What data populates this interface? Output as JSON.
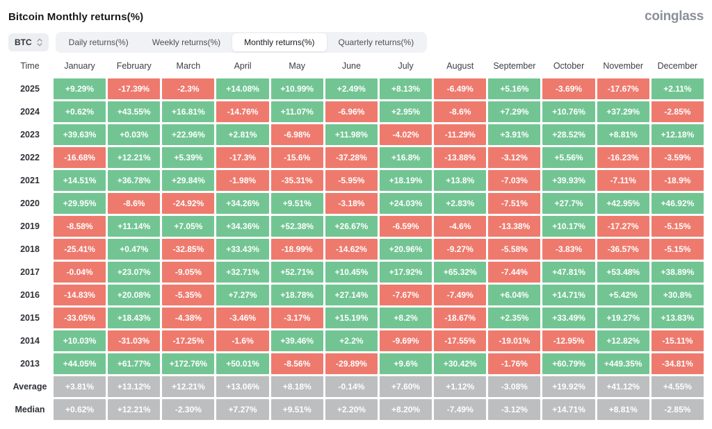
{
  "header": {
    "title": "Bitcoin Monthly returns(%)",
    "logo": "coinglass"
  },
  "toolbar": {
    "symbol_selector": {
      "value": "BTC",
      "icon": "updown-caret-icon"
    },
    "tabs": [
      {
        "id": "daily",
        "label": "Daily returns(%)",
        "active": false
      },
      {
        "id": "weekly",
        "label": "Weekly returns(%)",
        "active": false
      },
      {
        "id": "monthly",
        "label": "Monthly returns(%)",
        "active": true
      },
      {
        "id": "quarterly",
        "label": "Quarterly returns(%)",
        "active": false
      }
    ]
  },
  "colors": {
    "positive": "#72c593",
    "negative": "#ee7a6e",
    "summary": "#bdbebf"
  },
  "table": {
    "columns": [
      "Time",
      "January",
      "February",
      "March",
      "April",
      "May",
      "June",
      "July",
      "August",
      "September",
      "October",
      "November",
      "December"
    ],
    "rows": [
      {
        "label": "2025",
        "summary": false,
        "values": [
          "+9.29%",
          "-17.39%",
          "-2.3%",
          "+14.08%",
          "+10.99%",
          "+2.49%",
          "+8.13%",
          "-6.49%",
          "+5.16%",
          "-3.69%",
          "-17.67%",
          "+2.11%"
        ]
      },
      {
        "label": "2024",
        "summary": false,
        "values": [
          "+0.62%",
          "+43.55%",
          "+16.81%",
          "-14.76%",
          "+11.07%",
          "-6.96%",
          "+2.95%",
          "-8.6%",
          "+7.29%",
          "+10.76%",
          "+37.29%",
          "-2.85%"
        ]
      },
      {
        "label": "2023",
        "summary": false,
        "values": [
          "+39.63%",
          "+0.03%",
          "+22.96%",
          "+2.81%",
          "-6.98%",
          "+11.98%",
          "-4.02%",
          "-11.29%",
          "+3.91%",
          "+28.52%",
          "+8.81%",
          "+12.18%"
        ]
      },
      {
        "label": "2022",
        "summary": false,
        "values": [
          "-16.68%",
          "+12.21%",
          "+5.39%",
          "-17.3%",
          "-15.6%",
          "-37.28%",
          "+16.8%",
          "-13.88%",
          "-3.12%",
          "+5.56%",
          "-16.23%",
          "-3.59%"
        ]
      },
      {
        "label": "2021",
        "summary": false,
        "values": [
          "+14.51%",
          "+36.78%",
          "+29.84%",
          "-1.98%",
          "-35.31%",
          "-5.95%",
          "+18.19%",
          "+13.8%",
          "-7.03%",
          "+39.93%",
          "-7.11%",
          "-18.9%"
        ]
      },
      {
        "label": "2020",
        "summary": false,
        "values": [
          "+29.95%",
          "-8.6%",
          "-24.92%",
          "+34.26%",
          "+9.51%",
          "-3.18%",
          "+24.03%",
          "+2.83%",
          "-7.51%",
          "+27.7%",
          "+42.95%",
          "+46.92%"
        ]
      },
      {
        "label": "2019",
        "summary": false,
        "values": [
          "-8.58%",
          "+11.14%",
          "+7.05%",
          "+34.36%",
          "+52.38%",
          "+26.67%",
          "-6.59%",
          "-4.6%",
          "-13.38%",
          "+10.17%",
          "-17.27%",
          "-5.15%"
        ]
      },
      {
        "label": "2018",
        "summary": false,
        "values": [
          "-25.41%",
          "+0.47%",
          "-32.85%",
          "+33.43%",
          "-18.99%",
          "-14.62%",
          "+20.96%",
          "-9.27%",
          "-5.58%",
          "-3.83%",
          "-36.57%",
          "-5.15%"
        ]
      },
      {
        "label": "2017",
        "summary": false,
        "values": [
          "-0.04%",
          "+23.07%",
          "-9.05%",
          "+32.71%",
          "+52.71%",
          "+10.45%",
          "+17.92%",
          "+65.32%",
          "-7.44%",
          "+47.81%",
          "+53.48%",
          "+38.89%"
        ]
      },
      {
        "label": "2016",
        "summary": false,
        "values": [
          "-14.83%",
          "+20.08%",
          "-5.35%",
          "+7.27%",
          "+18.78%",
          "+27.14%",
          "-7.67%",
          "-7.49%",
          "+6.04%",
          "+14.71%",
          "+5.42%",
          "+30.8%"
        ]
      },
      {
        "label": "2015",
        "summary": false,
        "values": [
          "-33.05%",
          "+18.43%",
          "-4.38%",
          "-3.46%",
          "-3.17%",
          "+15.19%",
          "+8.2%",
          "-18.67%",
          "+2.35%",
          "+33.49%",
          "+19.27%",
          "+13.83%"
        ]
      },
      {
        "label": "2014",
        "summary": false,
        "values": [
          "+10.03%",
          "-31.03%",
          "-17.25%",
          "-1.6%",
          "+39.46%",
          "+2.2%",
          "-9.69%",
          "-17.55%",
          "-19.01%",
          "-12.95%",
          "+12.82%",
          "-15.11%"
        ]
      },
      {
        "label": "2013",
        "summary": false,
        "values": [
          "+44.05%",
          "+61.77%",
          "+172.76%",
          "+50.01%",
          "-8.56%",
          "-29.89%",
          "+9.6%",
          "+30.42%",
          "-1.76%",
          "+60.79%",
          "+449.35%",
          "-34.81%"
        ]
      },
      {
        "label": "Average",
        "summary": true,
        "values": [
          "+3.81%",
          "+13.12%",
          "+12.21%",
          "+13.06%",
          "+8.18%",
          "-0.14%",
          "+7.60%",
          "+1.12%",
          "-3.08%",
          "+19.92%",
          "+41.12%",
          "+4.55%"
        ]
      },
      {
        "label": "Median",
        "summary": true,
        "values": [
          "+0.62%",
          "+12.21%",
          "-2.30%",
          "+7.27%",
          "+9.51%",
          "+2.20%",
          "+8.20%",
          "-7.49%",
          "-3.12%",
          "+14.71%",
          "+8.81%",
          "-2.85%"
        ]
      }
    ]
  }
}
